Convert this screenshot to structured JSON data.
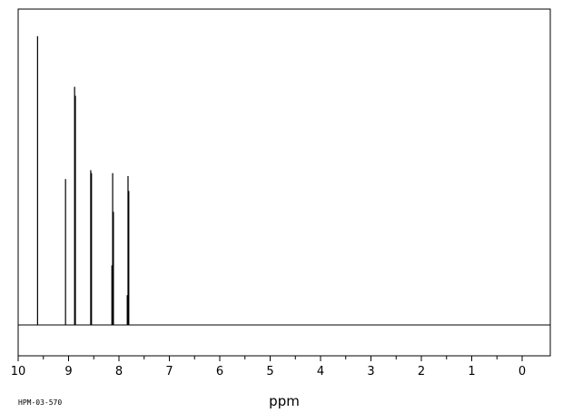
{
  "sample_id": "HPM-03-570",
  "chart_data": {
    "type": "line",
    "title": "",
    "xlabel": "ppm",
    "ylabel": "",
    "xlim": [
      10,
      0
    ],
    "x_reversed": true,
    "ylim": [
      0,
      1.0
    ],
    "grid": false,
    "ticks": [
      "10",
      "9",
      "8",
      "7",
      "6",
      "5",
      "4",
      "3",
      "2",
      "1",
      "0"
    ],
    "peaks": [
      {
        "ppm": 9.615,
        "intensity": 0.97
      },
      {
        "ppm": 9.06,
        "intensity": 0.49
      },
      {
        "ppm": 8.88,
        "intensity": 0.8
      },
      {
        "ppm": 8.865,
        "intensity": 0.77
      },
      {
        "ppm": 8.56,
        "intensity": 0.52
      },
      {
        "ppm": 8.545,
        "intensity": 0.51
      },
      {
        "ppm": 8.14,
        "intensity": 0.2
      },
      {
        "ppm": 8.125,
        "intensity": 0.51
      },
      {
        "ppm": 8.11,
        "intensity": 0.38
      },
      {
        "ppm": 7.835,
        "intensity": 0.1
      },
      {
        "ppm": 7.82,
        "intensity": 0.5
      },
      {
        "ppm": 7.805,
        "intensity": 0.45
      }
    ]
  }
}
